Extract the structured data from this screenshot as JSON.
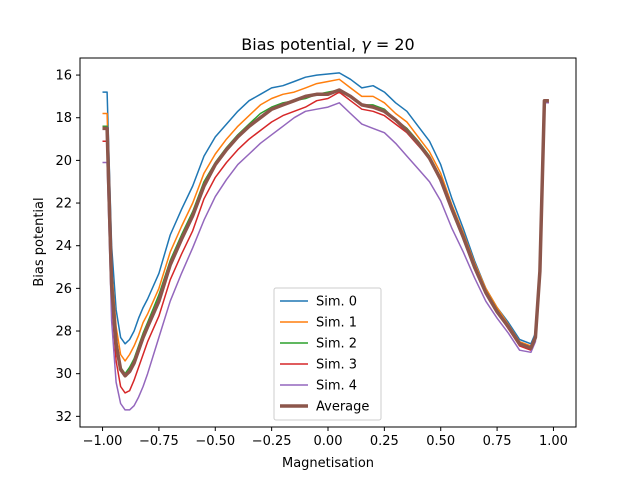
{
  "chart_data": {
    "type": "line",
    "title": "Bias potential, γ = 20",
    "title_prefix": "Bias potential, ",
    "title_symbol": "γ",
    "title_suffix": " = 20",
    "xlabel": "Magnetisation",
    "ylabel": "Bias potential",
    "xlim": [
      -1.1,
      1.1
    ],
    "ylim": [
      32.5,
      15.2
    ],
    "y_inverted": true,
    "grid": false,
    "legend_position": "lower center",
    "x_ticks": [
      "−1.00",
      "−0.75",
      "−0.50",
      "−0.25",
      "0.00",
      "0.25",
      "0.50",
      "0.75",
      "1.00"
    ],
    "x_tick_values": [
      -1.0,
      -0.75,
      -0.5,
      -0.25,
      0.0,
      0.25,
      0.5,
      0.75,
      1.0
    ],
    "y_ticks": [
      "16",
      "18",
      "20",
      "22",
      "24",
      "26",
      "28",
      "30",
      "32"
    ],
    "y_tick_values": [
      16,
      18,
      20,
      22,
      24,
      26,
      28,
      30,
      32
    ],
    "x": [
      -0.98,
      -0.96,
      -0.94,
      -0.92,
      -0.9,
      -0.88,
      -0.86,
      -0.84,
      -0.82,
      -0.8,
      -0.75,
      -0.7,
      -0.65,
      -0.6,
      -0.55,
      -0.5,
      -0.45,
      -0.4,
      -0.35,
      -0.3,
      -0.25,
      -0.2,
      -0.15,
      -0.1,
      -0.05,
      0.0,
      0.05,
      0.1,
      0.15,
      0.2,
      0.25,
      0.3,
      0.35,
      0.4,
      0.45,
      0.5,
      0.55,
      0.6,
      0.65,
      0.7,
      0.75,
      0.8,
      0.85,
      0.9,
      0.92,
      0.94,
      0.96,
      0.98
    ],
    "series": [
      {
        "name": "Sim. 0",
        "color": "#1f77b4",
        "width": 1.5,
        "start": {
          "x": -1.0,
          "y": 16.8
        },
        "values": [
          16.8,
          24.0,
          27.0,
          28.3,
          28.6,
          28.4,
          28.0,
          27.4,
          26.9,
          26.5,
          25.3,
          23.5,
          22.3,
          21.2,
          19.8,
          18.9,
          18.3,
          17.7,
          17.2,
          16.9,
          16.6,
          16.5,
          16.3,
          16.1,
          16.0,
          15.95,
          15.9,
          16.2,
          16.6,
          16.5,
          16.8,
          17.3,
          17.7,
          18.4,
          19.1,
          20.2,
          21.8,
          23.2,
          24.7,
          26.0,
          26.9,
          27.6,
          28.4,
          28.6,
          28.1,
          25.0,
          17.2,
          17.2
        ]
      },
      {
        "name": "Sim. 1",
        "color": "#ff7f0e",
        "width": 1.5,
        "start": {
          "x": -1.0,
          "y": 17.8
        },
        "values": [
          17.8,
          25.0,
          27.8,
          29.1,
          29.4,
          29.1,
          28.7,
          28.2,
          27.6,
          27.2,
          26.0,
          24.3,
          23.1,
          22.0,
          20.6,
          19.7,
          19.0,
          18.4,
          17.9,
          17.4,
          17.1,
          16.9,
          16.8,
          16.6,
          16.4,
          16.3,
          16.2,
          16.6,
          17.0,
          17.0,
          17.3,
          17.8,
          18.2,
          18.9,
          19.6,
          20.6,
          22.1,
          23.4,
          24.8,
          26.0,
          26.9,
          27.7,
          28.5,
          28.7,
          28.2,
          25.1,
          17.2,
          17.2
        ]
      },
      {
        "name": "Sim. 2",
        "color": "#2ca02c",
        "width": 1.5,
        "start": {
          "x": -1.0,
          "y": 18.4
        },
        "values": [
          18.4,
          25.6,
          28.3,
          29.7,
          30.0,
          29.7,
          29.3,
          28.7,
          28.1,
          27.6,
          26.3,
          24.7,
          23.5,
          22.4,
          21.0,
          20.1,
          19.4,
          18.8,
          18.3,
          17.8,
          17.5,
          17.3,
          17.2,
          17.1,
          16.9,
          16.8,
          16.7,
          17.0,
          17.4,
          17.4,
          17.6,
          18.1,
          18.5,
          19.1,
          19.8,
          20.8,
          22.2,
          23.5,
          24.9,
          26.1,
          27.0,
          27.8,
          28.6,
          28.8,
          28.3,
          25.2,
          17.3,
          17.3
        ]
      },
      {
        "name": "Sim. 3",
        "color": "#d62728",
        "width": 1.5,
        "start": {
          "x": -1.0,
          "y": 19.1
        },
        "values": [
          19.1,
          26.7,
          29.4,
          30.6,
          30.9,
          30.8,
          30.3,
          29.7,
          29.1,
          28.5,
          27.3,
          25.6,
          24.4,
          23.3,
          21.8,
          20.8,
          20.1,
          19.5,
          19.0,
          18.6,
          18.2,
          17.9,
          17.7,
          17.5,
          17.2,
          17.1,
          16.8,
          17.2,
          17.6,
          17.7,
          17.9,
          18.3,
          18.7,
          19.3,
          19.9,
          20.9,
          22.3,
          23.6,
          25.0,
          26.2,
          27.1,
          27.9,
          28.7,
          28.9,
          28.4,
          25.3,
          17.3,
          17.3
        ]
      },
      {
        "name": "Sim. 4",
        "color": "#9467bd",
        "width": 1.5,
        "start": {
          "x": -1.0,
          "y": 20.1
        },
        "values": [
          20.1,
          27.5,
          30.4,
          31.4,
          31.7,
          31.7,
          31.5,
          31.1,
          30.6,
          30.0,
          28.3,
          26.6,
          25.3,
          24.1,
          22.8,
          21.7,
          20.9,
          20.2,
          19.7,
          19.2,
          18.8,
          18.4,
          18.0,
          17.7,
          17.6,
          17.5,
          17.3,
          17.8,
          18.3,
          18.5,
          18.7,
          19.2,
          19.8,
          20.4,
          21.0,
          21.9,
          23.2,
          24.3,
          25.5,
          26.6,
          27.4,
          28.1,
          28.9,
          29.0,
          28.5,
          25.4,
          17.3,
          17.3
        ]
      },
      {
        "name": "Average",
        "color": "#8c564b",
        "width": 3.5,
        "start": {
          "x": -1.0,
          "y": 18.5
        },
        "values": [
          18.5,
          25.8,
          28.6,
          29.8,
          30.1,
          29.9,
          29.5,
          28.9,
          28.3,
          27.8,
          26.6,
          24.9,
          23.7,
          22.6,
          21.2,
          20.2,
          19.5,
          18.9,
          18.4,
          18.0,
          17.6,
          17.4,
          17.2,
          17.0,
          16.9,
          16.9,
          16.7,
          17.0,
          17.4,
          17.5,
          17.7,
          18.1,
          18.6,
          19.2,
          19.9,
          20.9,
          22.3,
          23.6,
          25.0,
          26.2,
          27.1,
          27.8,
          28.6,
          28.8,
          28.3,
          25.2,
          17.2,
          17.2
        ]
      }
    ]
  }
}
